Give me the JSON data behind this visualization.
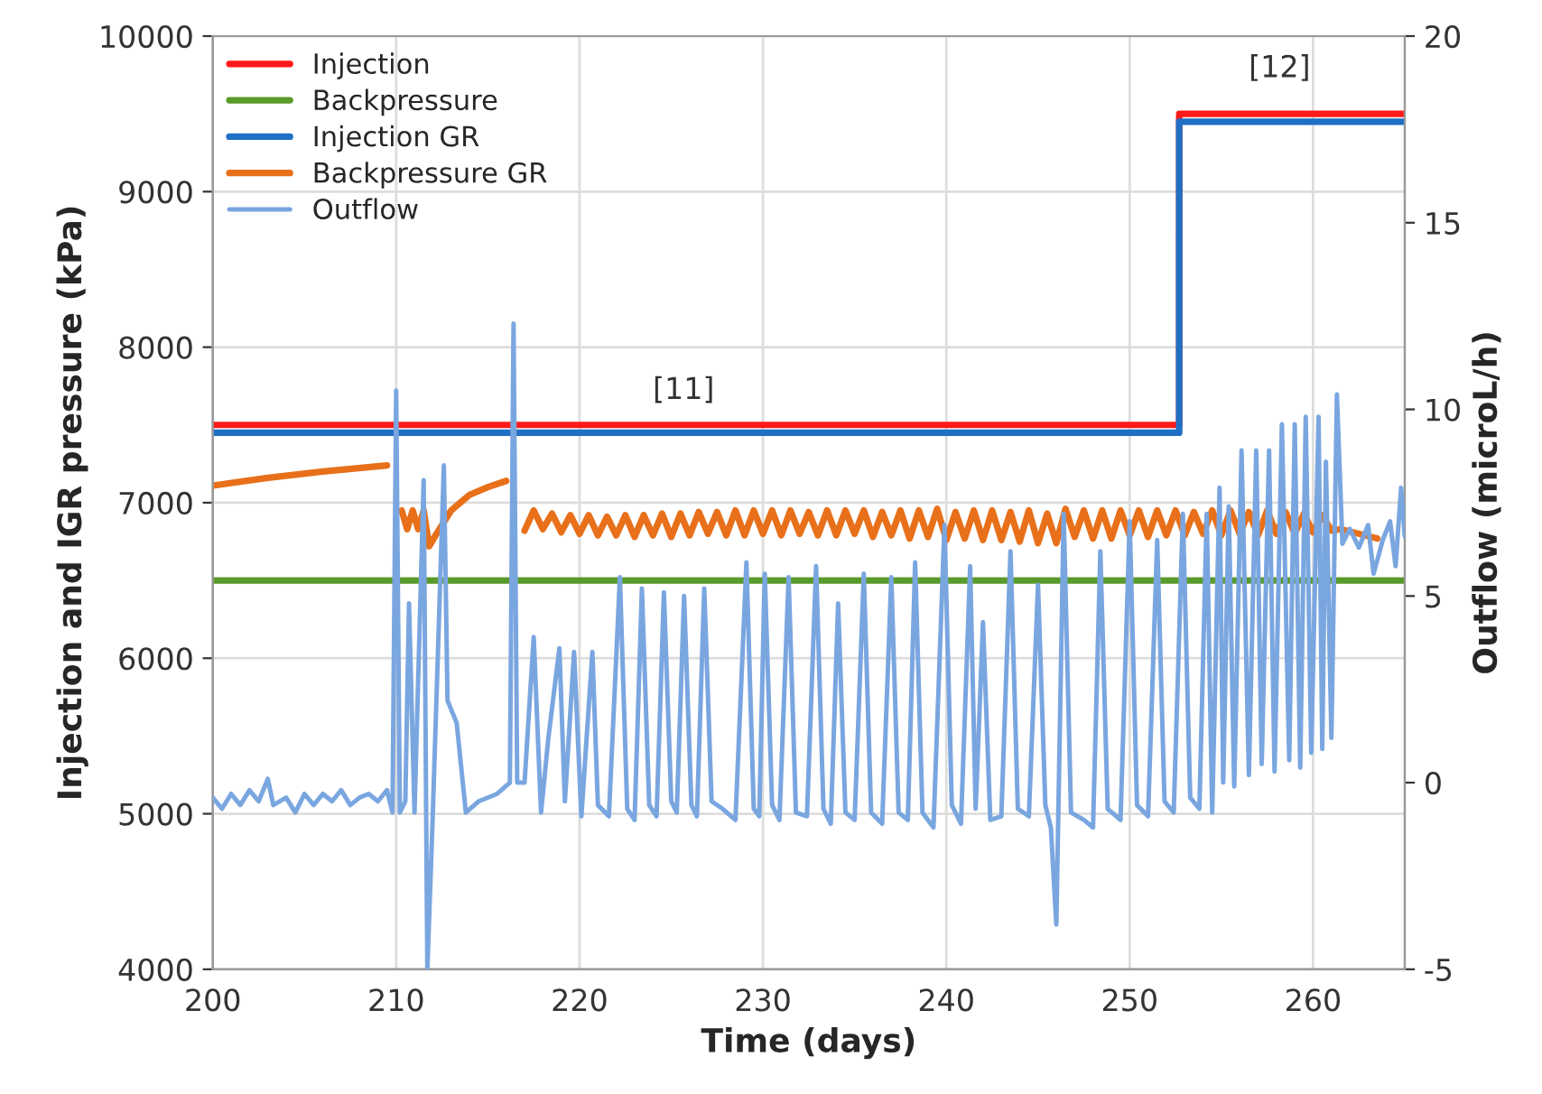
{
  "chart_data": {
    "type": "line",
    "xlabel": "Time (days)",
    "ylabel": "Injection and IGR pressure (kPa)",
    "y2label": "Outflow (microL/h)",
    "xlim": [
      200,
      265
    ],
    "xticks": [
      200,
      210,
      220,
      230,
      240,
      250,
      260
    ],
    "ylim": [
      4000,
      10000
    ],
    "yticks": [
      4000,
      5000,
      6000,
      7000,
      8000,
      9000,
      10000
    ],
    "y2lim": [
      -5,
      20
    ],
    "y2ticks": [
      -5,
      0,
      5,
      10,
      15,
      20
    ],
    "grid": true,
    "legend": "top left",
    "marker": "none",
    "line_style": "solid",
    "annotations": [
      "[11]",
      "[12]"
    ],
    "series": [
      {
        "name": "Injection",
        "color": "#ff1a1a",
        "x": [
          200,
          252.7,
          252.7,
          265
        ],
        "values": [
          7500,
          7500,
          9500,
          9500
        ]
      },
      {
        "name": "Backpressure",
        "color": "#5a9a2a",
        "x": [
          200,
          265
        ],
        "values": [
          6500,
          6500
        ]
      },
      {
        "name": "Injection GR",
        "color": "#1f6fc4",
        "x": [
          200,
          252.7,
          252.7,
          265
        ],
        "values": [
          7450,
          7450,
          9450,
          9450
        ]
      },
      {
        "name": "Backpressure GR",
        "color": "#e8701a",
        "x": [
          200,
          203,
          206,
          209.5,
          209.9,
          210.3,
          210.6,
          210.9,
          211.2,
          211.5,
          211.8,
          212.2,
          213,
          214,
          215,
          216,
          216.5,
          217.0,
          217.5,
          218.0,
          218.5,
          219.0,
          219.5,
          220.0,
          220.5,
          221.0,
          221.5,
          222.0,
          222.5,
          223.0,
          223.5,
          224.0,
          224.5,
          225.0,
          225.5,
          226.0,
          226.5,
          227.0,
          227.5,
          228.0,
          228.5,
          229.0,
          229.5,
          230.0,
          230.5,
          231.0,
          231.5,
          232.0,
          232.5,
          233.0,
          233.5,
          234.0,
          234.5,
          235.0,
          235.5,
          236.0,
          236.5,
          237.0,
          237.5,
          238.0,
          238.5,
          239.0,
          239.5,
          240.0,
          240.5,
          241.0,
          241.5,
          242.0,
          242.5,
          243.0,
          243.5,
          244.0,
          244.5,
          245.0,
          245.5,
          246.0,
          246.5,
          247.0,
          247.5,
          248.0,
          248.5,
          249.0,
          249.5,
          250.0,
          250.5,
          251.0,
          251.5,
          252.0,
          252.5,
          253.0,
          253.5,
          254.0,
          254.5,
          255.0,
          255.5,
          256.0,
          256.5,
          257.0,
          257.5,
          258.0,
          258.5,
          259.0,
          259.5,
          260.0,
          260.5,
          261.0,
          261.5,
          262.5,
          263.5
        ],
        "values": [
          7110,
          7160,
          7200,
          7240,
          null,
          6950,
          6830,
          6950,
          6830,
          6950,
          6720,
          6800,
          6950,
          7050,
          7100,
          7140,
          null,
          6820,
          6950,
          6830,
          6930,
          6810,
          6920,
          6800,
          6920,
          6790,
          6910,
          6790,
          6920,
          6780,
          6920,
          6790,
          6930,
          6780,
          6930,
          6790,
          6940,
          6800,
          6940,
          6790,
          6950,
          6790,
          6950,
          6800,
          6950,
          6790,
          6950,
          6800,
          6940,
          6790,
          6950,
          6790,
          6950,
          6800,
          6950,
          6780,
          6940,
          6790,
          6950,
          6770,
          6950,
          6780,
          6960,
          6760,
          6940,
          6770,
          6950,
          6760,
          6950,
          6760,
          6940,
          6750,
          6950,
          6740,
          6930,
          6740,
          6960,
          6780,
          6950,
          6770,
          6950,
          6770,
          6950,
          6790,
          6950,
          6780,
          6950,
          6790,
          6950,
          6790,
          6940,
          6800,
          6950,
          6790,
          6950,
          6800,
          6940,
          6790,
          6950,
          6800,
          6940,
          6800,
          6930,
          6810,
          6920,
          6820,
          6830,
          6800,
          6770
        ]
      },
      {
        "name": "Outflow",
        "color": "#7aa6e0",
        "axis": "y2",
        "x": [
          200,
          200.5,
          201,
          201.5,
          202,
          202.5,
          203,
          203.3,
          204,
          204.5,
          205,
          205.5,
          206,
          206.5,
          207,
          207.5,
          208,
          208.5,
          209,
          209.5,
          209.8,
          210.0,
          210.2,
          210.5,
          210.7,
          211.0,
          211.5,
          211.7,
          212.0,
          212.6,
          212.8,
          213.3,
          213.8,
          214.5,
          215.5,
          216.2,
          216.4,
          216.6,
          217.0,
          217.5,
          217.9,
          218.3,
          218.9,
          219.2,
          219.7,
          220.1,
          220.7,
          221.0,
          221.6,
          222.2,
          222.6,
          223.0,
          223.4,
          223.8,
          224.2,
          224.6,
          225.0,
          225.3,
          225.7,
          226.1,
          226.4,
          226.8,
          227.2,
          227.8,
          228.5,
          229.1,
          229.5,
          229.8,
          230.1,
          230.5,
          230.9,
          231.4,
          231.8,
          232.4,
          232.9,
          233.3,
          233.7,
          234.1,
          234.5,
          235.0,
          235.5,
          235.9,
          236.5,
          237.0,
          237.4,
          237.9,
          238.3,
          238.7,
          239.3,
          239.9,
          240.3,
          240.8,
          241.3,
          241.6,
          242.0,
          242.4,
          243.0,
          243.5,
          243.9,
          244.5,
          245.0,
          245.4,
          245.7,
          246.0,
          246.4,
          246.8,
          247.5,
          248.0,
          248.4,
          248.8,
          249.5,
          250.0,
          250.4,
          251.0,
          251.5,
          251.9,
          252.4,
          252.9,
          253.3,
          253.8,
          254.2,
          254.5,
          254.9,
          255.1,
          255.4,
          255.7,
          256.1,
          256.5,
          256.9,
          257.2,
          257.6,
          257.9,
          258.3,
          258.7,
          259.0,
          259.3,
          259.6,
          259.9,
          260.3,
          260.5,
          260.7,
          261.0,
          261.3,
          261.6,
          262.0,
          262.5,
          263.0,
          263.3,
          263.8,
          264.2,
          264.5,
          264.8,
          265
        ],
        "values": [
          -0.4,
          -0.7,
          -0.3,
          -0.6,
          -0.2,
          -0.5,
          0.1,
          -0.6,
          -0.4,
          -0.8,
          -0.3,
          -0.6,
          -0.3,
          -0.5,
          -0.2,
          -0.6,
          -0.4,
          -0.3,
          -0.5,
          -0.2,
          -0.8,
          10.5,
          -0.8,
          -0.5,
          4.8,
          -0.8,
          8.1,
          -5.0,
          -0.8,
          8.5,
          2.2,
          1.6,
          -0.8,
          -0.5,
          -0.3,
          0.0,
          12.3,
          0.0,
          0.0,
          3.9,
          -0.8,
          1.2,
          3.6,
          -0.5,
          3.5,
          -0.9,
          3.5,
          -0.6,
          -0.9,
          5.5,
          -0.7,
          -1.0,
          5.2,
          -0.6,
          -0.9,
          5.1,
          -0.5,
          -0.8,
          5.0,
          -0.6,
          -0.9,
          5.2,
          -0.5,
          -0.7,
          -1.0,
          5.9,
          -0.7,
          -0.9,
          5.6,
          -0.6,
          -1.0,
          5.5,
          -0.8,
          -0.9,
          5.8,
          -0.7,
          -1.1,
          4.8,
          -0.8,
          -1.0,
          5.6,
          -0.8,
          -1.1,
          5.5,
          -0.8,
          -1.0,
          5.9,
          -0.8,
          -1.2,
          6.9,
          -0.6,
          -1.1,
          5.8,
          -0.7,
          4.3,
          -1.0,
          -0.9,
          6.2,
          -0.7,
          -0.9,
          5.3,
          -0.6,
          -1.2,
          -3.8,
          7.2,
          -0.8,
          -1.0,
          -1.2,
          6.2,
          -0.7,
          -1.0,
          7.0,
          -0.6,
          -0.9,
          6.5,
          -0.5,
          -0.8,
          7.2,
          -0.4,
          -0.7,
          7.2,
          -0.8,
          7.9,
          0.0,
          7.4,
          -0.1,
          8.9,
          0.2,
          8.9,
          0.5,
          8.9,
          0.3,
          9.6,
          0.6,
          9.6,
          0.4,
          9.8,
          0.8,
          9.8,
          0.9,
          8.6,
          1.2,
          10.4,
          6.4,
          6.8,
          6.3,
          6.9,
          5.6,
          6.5,
          7.0,
          5.8,
          7.9,
          6.6
        ]
      }
    ]
  }
}
